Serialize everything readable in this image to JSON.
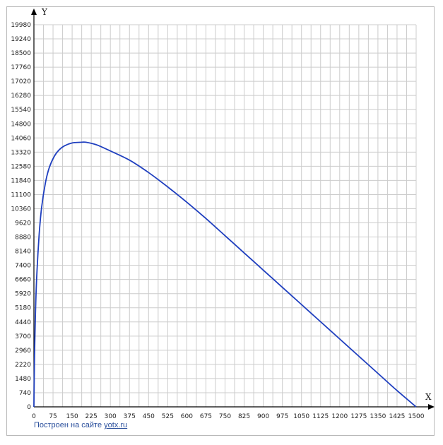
{
  "chart_data": {
    "type": "line",
    "xlabel": "X",
    "ylabel": "Y",
    "xlim": [
      0,
      1500
    ],
    "ylim": [
      0,
      19980
    ],
    "x_ticks": [
      "0",
      "75",
      "150",
      "225",
      "300",
      "375",
      "450",
      "525",
      "600",
      "675",
      "750",
      "825",
      "900",
      "975",
      "1050",
      "1125",
      "1200",
      "1275",
      "1350",
      "1425",
      "1500"
    ],
    "y_ticks": [
      "0",
      "740",
      "1480",
      "2220",
      "2960",
      "3700",
      "4440",
      "5180",
      "5920",
      "6660",
      "7400",
      "8140",
      "8880",
      "9620",
      "10360",
      "11100",
      "11840",
      "12580",
      "13320",
      "14060",
      "14800",
      "15540",
      "16280",
      "17020",
      "17760",
      "18500",
      "19240",
      "19980"
    ],
    "grid": true,
    "legend": "none",
    "colors": {
      "series": "#1f3fbf",
      "grid": "#cccccc",
      "axis": "#000000"
    },
    "series": [
      {
        "color": "#1f3fbf",
        "points": [
          [
            0,
            0
          ],
          [
            2,
            2300
          ],
          [
            5,
            4300
          ],
          [
            10,
            6500
          ],
          [
            20,
            8900
          ],
          [
            30,
            10400
          ],
          [
            45,
            11700
          ],
          [
            60,
            12500
          ],
          [
            80,
            13100
          ],
          [
            100,
            13450
          ],
          [
            120,
            13650
          ],
          [
            150,
            13800
          ],
          [
            180,
            13830
          ],
          [
            200,
            13840
          ],
          [
            225,
            13780
          ],
          [
            250,
            13680
          ],
          [
            300,
            13380
          ],
          [
            375,
            12900
          ],
          [
            450,
            12250
          ],
          [
            525,
            11500
          ],
          [
            600,
            10700
          ],
          [
            675,
            9850
          ],
          [
            750,
            8950
          ],
          [
            825,
            8050
          ],
          [
            900,
            7150
          ],
          [
            975,
            6250
          ],
          [
            1050,
            5350
          ],
          [
            1125,
            4450
          ],
          [
            1200,
            3550
          ],
          [
            1275,
            2650
          ],
          [
            1350,
            1750
          ],
          [
            1425,
            850
          ],
          [
            1500,
            0
          ]
        ]
      }
    ]
  },
  "credit": {
    "prefix": "Построен на сайте ",
    "link": "yotx.ru"
  }
}
